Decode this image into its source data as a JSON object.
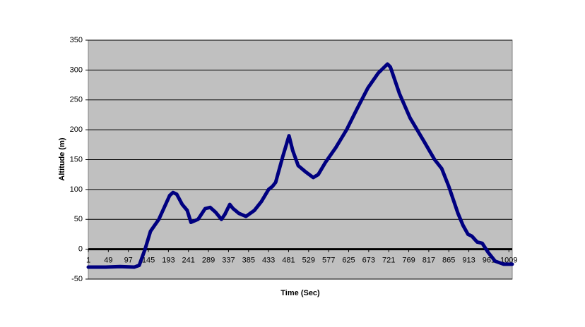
{
  "chart_data": {
    "type": "line",
    "x_label": "Time (Sec)",
    "y_label": "Altitude (m)",
    "x": [
      1,
      43,
      77,
      111,
      123,
      137,
      150,
      170,
      196,
      204,
      213,
      226,
      238,
      247,
      264,
      281,
      293,
      306,
      320,
      328,
      340,
      348,
      362,
      379,
      399,
      416,
      433,
      442,
      450,
      467,
      482,
      491,
      504,
      521,
      540,
      552,
      569,
      594,
      620,
      645,
      671,
      696,
      718,
      725,
      747,
      772,
      806,
      831,
      848,
      865,
      887,
      899,
      911,
      920,
      933,
      945,
      959,
      976,
      996,
      1017
    ],
    "series": [
      {
        "name": "Altitude",
        "color": "#000080",
        "values": [
          -30,
          -30,
          -29,
          -30,
          -27,
          0,
          30,
          50,
          90,
          95,
          92,
          75,
          65,
          45,
          50,
          68,
          70,
          62,
          50,
          58,
          75,
          68,
          60,
          55,
          65,
          80,
          100,
          105,
          112,
          155,
          190,
          165,
          140,
          130,
          120,
          125,
          145,
          170,
          200,
          235,
          270,
          295,
          310,
          305,
          260,
          220,
          180,
          150,
          135,
          105,
          60,
          40,
          25,
          22,
          12,
          10,
          -5,
          -20,
          -25,
          -25
        ]
      }
    ],
    "xlim": [
      1,
      1017
    ],
    "xticks": [
      1,
      49,
      97,
      145,
      193,
      241,
      289,
      337,
      385,
      433,
      481,
      529,
      577,
      625,
      673,
      721,
      769,
      817,
      865,
      913,
      961,
      1009
    ],
    "ylim": [
      -50,
      350
    ],
    "yticks": [
      -50,
      0,
      50,
      100,
      150,
      200,
      250,
      300,
      350
    ],
    "grid": true,
    "plot_background": "#c0c0c0"
  }
}
